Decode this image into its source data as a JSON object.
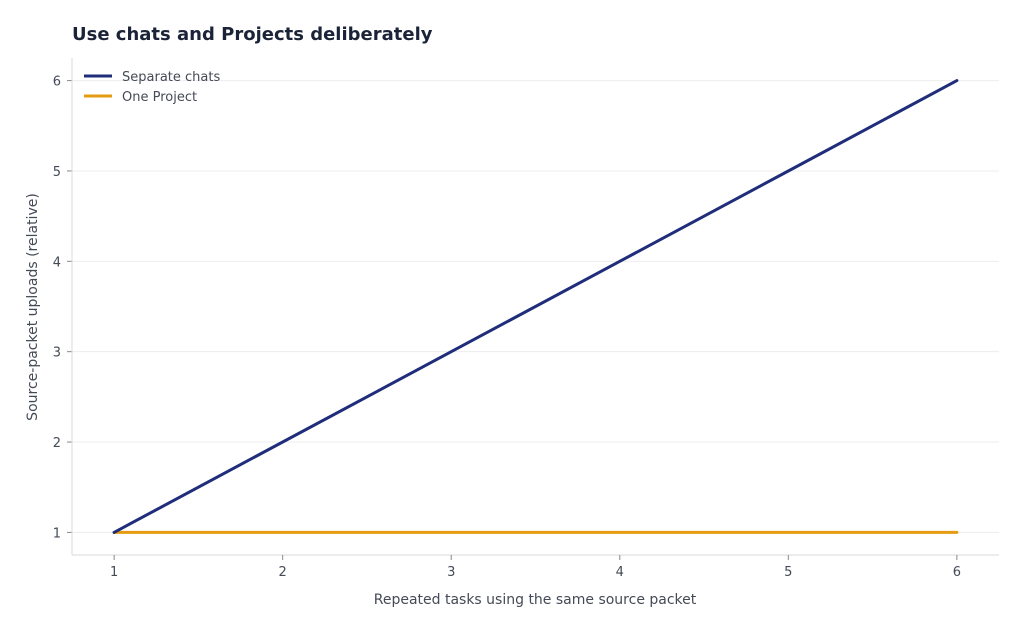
{
  "chart_data": {
    "type": "line",
    "title": "Use chats and Projects deliberately",
    "xlabel": "Repeated tasks using the same source packet",
    "ylabel": "Source-packet uploads (relative)",
    "x": [
      1,
      2,
      3,
      4,
      5,
      6
    ],
    "xticks": [
      "1",
      "2",
      "3",
      "4",
      "5",
      "6"
    ],
    "yticks": [
      "1",
      "2",
      "3",
      "4",
      "5",
      "6"
    ],
    "xlim": [
      0.75,
      6.25
    ],
    "ylim": [
      0.75,
      6.25
    ],
    "grid": "horizontal",
    "legend_position": "top-left",
    "series": [
      {
        "name": "Separate chats",
        "values": [
          1,
          2,
          3,
          4,
          5,
          6
        ],
        "color": "#1f2d7a"
      },
      {
        "name": "One Project",
        "values": [
          1,
          1,
          1,
          1,
          1,
          1
        ],
        "color": "#e59c12"
      }
    ]
  }
}
